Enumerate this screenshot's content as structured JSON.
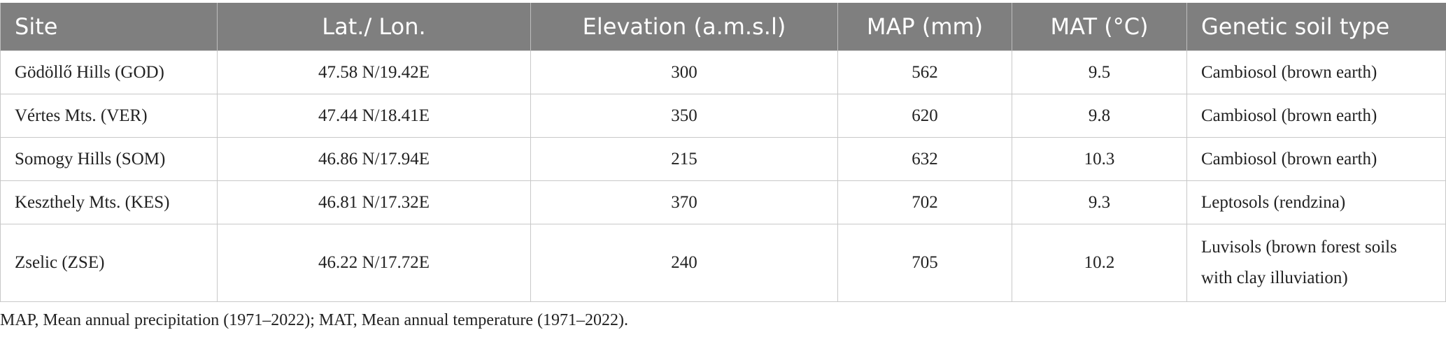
{
  "table": {
    "headers": [
      "Site",
      "Lat./ Lon.",
      "Elevation (a.m.s.l)",
      "MAP (mm)",
      "MAT (°C)",
      "Genetic soil type"
    ],
    "rows": [
      [
        "Gödöllő Hills (GOD)",
        "47.58 N/19.42E",
        "300",
        "562",
        "9.5",
        "Cambiosol (brown earth)"
      ],
      [
        "Vértes Mts. (VER)",
        "47.44 N/18.41E",
        "350",
        "620",
        "9.8",
        "Cambiosol (brown earth)"
      ],
      [
        "Somogy Hills (SOM)",
        "46.86 N/17.94E",
        "215",
        "632",
        "10.3",
        "Cambiosol (brown earth)"
      ],
      [
        "Keszthely Mts. (KES)",
        "46.81 N/17.32E",
        "370",
        "702",
        "9.3",
        "Leptosols (rendzina)"
      ],
      [
        "Zselic (ZSE)",
        "46.22 N/17.72E",
        "240",
        "705",
        "10.2",
        "Luvisols (brown forest soils with clay illuviation)"
      ]
    ]
  },
  "footnote": "MAP, Mean annual precipitation (1971–2022); MAT, Mean annual temperature (1971–2022)."
}
